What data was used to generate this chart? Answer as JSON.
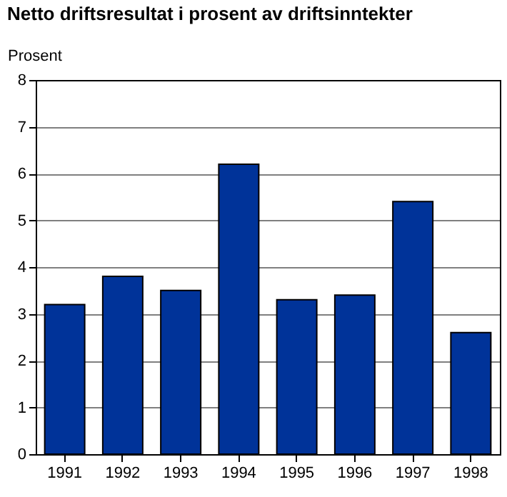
{
  "chart_data": {
    "type": "bar",
    "title": "Netto driftsresultat i prosent av driftsinntekter",
    "ylabel": "Prosent",
    "categories": [
      "1991",
      "1992",
      "1993",
      "1994",
      "1995",
      "1996",
      "1997",
      "1998"
    ],
    "values": [
      3.2,
      3.8,
      3.5,
      6.2,
      3.3,
      3.4,
      5.4,
      2.6
    ],
    "color": "#003399",
    "ylim": [
      0,
      8
    ],
    "yticks": [
      0,
      1,
      2,
      3,
      4,
      5,
      6,
      7,
      8
    ],
    "grid": "y"
  }
}
